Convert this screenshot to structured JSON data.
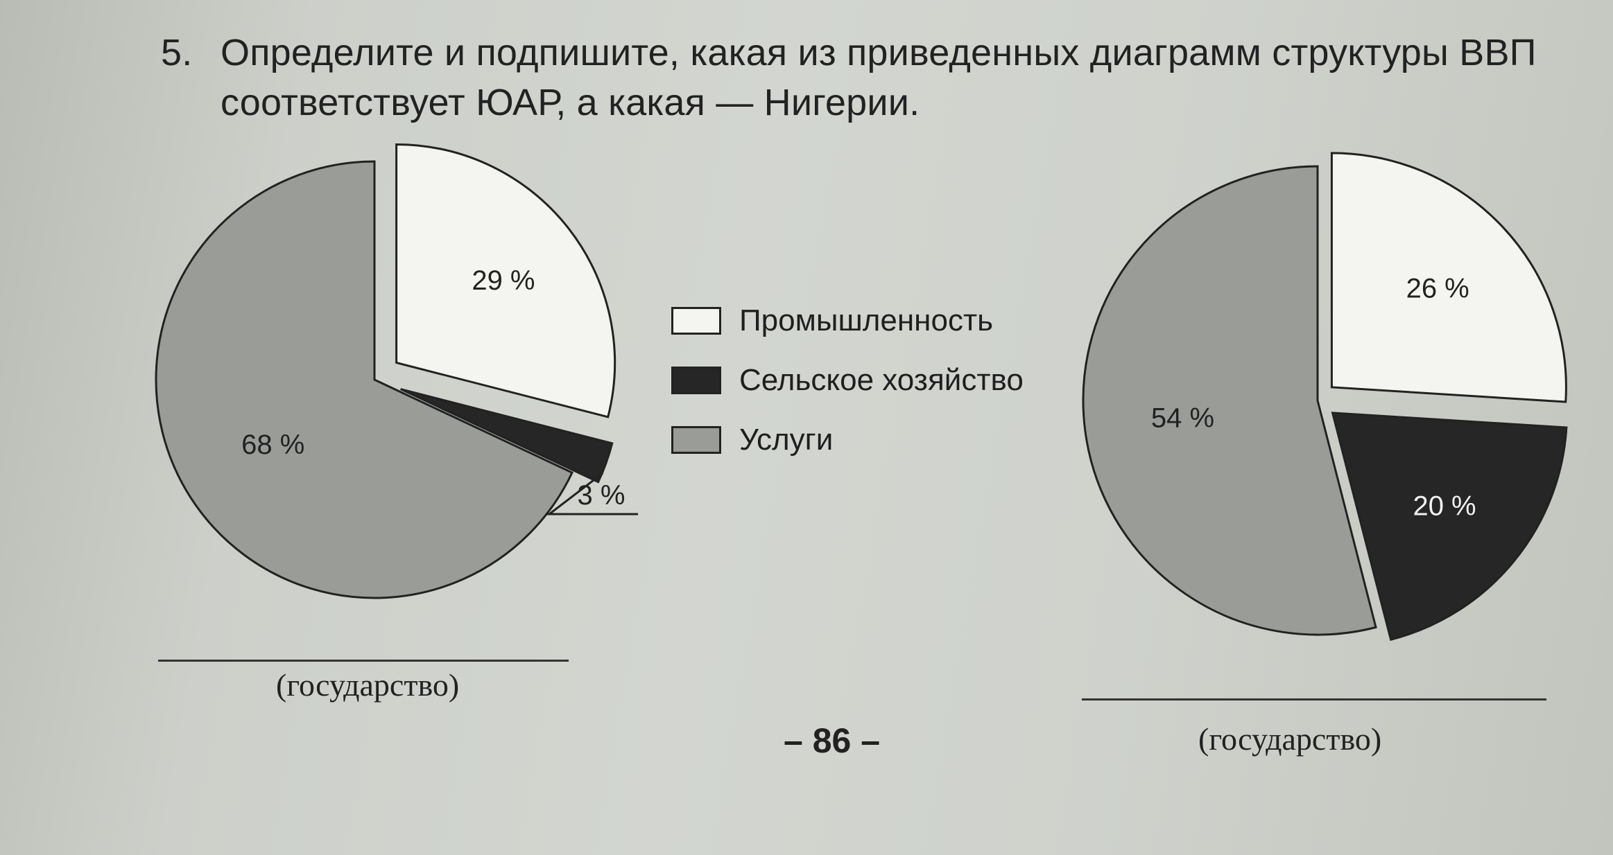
{
  "task": {
    "number": "5.",
    "line1": "Определите и подпишите, какая из приведенных диаграмм структуры ВВП",
    "line2": "соответствует ЮАР, а какая — Нигерии."
  },
  "legend": [
    {
      "label": "Промышленность",
      "color": "#f4f4f0"
    },
    {
      "label": "Сельское хозяйство",
      "color": "#262626"
    },
    {
      "label": "Услуги",
      "color": "#9a9c98"
    }
  ],
  "chart_data": [
    {
      "type": "pie",
      "slices": [
        {
          "label": "Промышленность",
          "value": 29,
          "display": "29 %",
          "color": "#f4f4f0",
          "exploded": true
        },
        {
          "label": "Сельское хозяйство",
          "value": 3,
          "display": "3 %",
          "color": "#262626",
          "exploded": true
        },
        {
          "label": "Услуги",
          "value": 68,
          "display": "68 %",
          "color": "#9a9c98",
          "exploded": false
        }
      ],
      "caption": "(государство)"
    },
    {
      "type": "pie",
      "slices": [
        {
          "label": "Промышленность",
          "value": 26,
          "display": "26 %",
          "color": "#f4f4f0",
          "exploded": true
        },
        {
          "label": "Сельское хозяйство",
          "value": 20,
          "display": "20 %",
          "color": "#262626",
          "exploded": true
        },
        {
          "label": "Услуги",
          "value": 54,
          "display": "54 %",
          "color": "#9a9c98",
          "exploded": false
        }
      ],
      "caption": "(государство)"
    }
  ],
  "page_number": "– 86 –"
}
